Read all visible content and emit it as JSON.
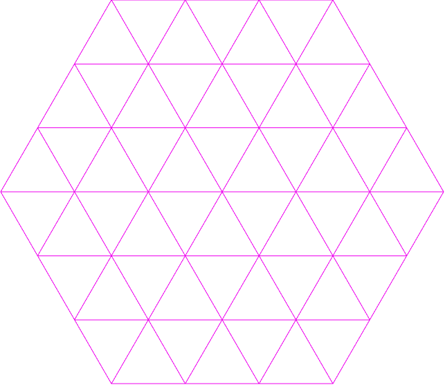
{
  "diagram": {
    "kind": "hexagonal triangular grid",
    "subdivisions_per_side": 3,
    "line_color": "#ee00ee",
    "background_color": "#ffffff",
    "labels": []
  }
}
